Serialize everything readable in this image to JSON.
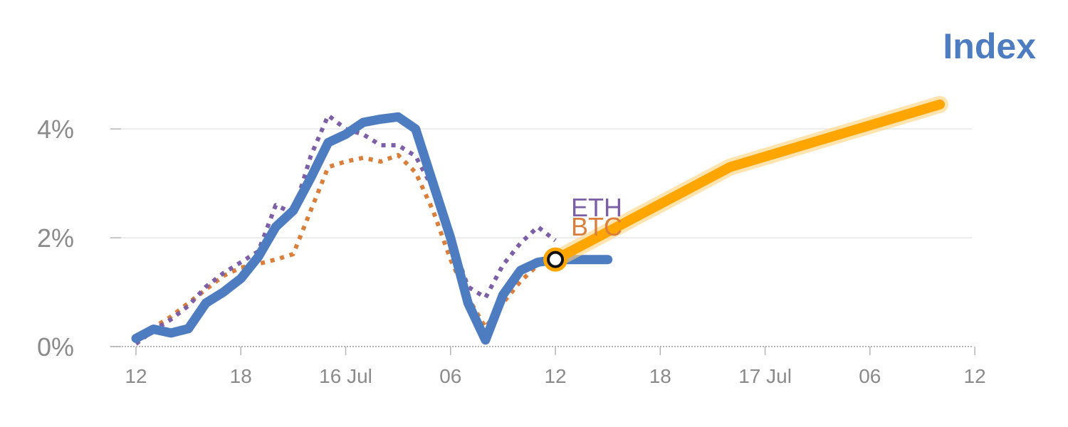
{
  "chart_data": {
    "type": "line",
    "title": "Index",
    "xlabel": "",
    "ylabel": "",
    "x_tick_labels": [
      "12",
      "18",
      "16 Jul",
      "06",
      "12",
      "18",
      "17 Jul",
      "06",
      "12"
    ],
    "y_tick_labels": [
      "0%",
      "2%",
      "4%"
    ],
    "y_ticks": [
      0,
      2,
      4
    ],
    "ylim": [
      0,
      4.8
    ],
    "xlim": [
      0,
      46
    ],
    "grid": true,
    "legend": "none",
    "series": [
      {
        "name": "",
        "style": "solid",
        "x": [
          0,
          1,
          2,
          3,
          4,
          5,
          6,
          7,
          8,
          9,
          10,
          11,
          12,
          13,
          14,
          15,
          16,
          17,
          18,
          19,
          20,
          21,
          22,
          23,
          24,
          25,
          26,
          27
        ],
        "values": [
          0.15,
          0.32,
          0.25,
          0.33,
          0.8,
          1.0,
          1.25,
          1.65,
          2.2,
          2.5,
          3.1,
          3.75,
          3.9,
          4.12,
          4.18,
          4.22,
          4.0,
          3.0,
          2.0,
          0.8,
          0.12,
          0.95,
          1.4,
          1.55,
          1.6,
          1.6,
          1.6,
          1.6
        ],
        "color": "#4e7cc0"
      },
      {
        "name": "BTC",
        "style": "dotted",
        "x": [
          0,
          1,
          2,
          3,
          4,
          5,
          6,
          7,
          8,
          9,
          10,
          11,
          12,
          13,
          14,
          15,
          16,
          17,
          18,
          19,
          20,
          21,
          22,
          23,
          24
        ],
        "values": [
          0.08,
          0.35,
          0.55,
          0.8,
          1.05,
          1.3,
          1.45,
          1.52,
          1.6,
          1.7,
          2.5,
          3.3,
          3.4,
          3.47,
          3.4,
          3.52,
          3.2,
          2.5,
          1.6,
          0.9,
          0.35,
          0.8,
          1.2,
          1.5,
          1.78
        ],
        "color": "#d97f3b"
      },
      {
        "name": "ETH",
        "style": "dotted",
        "x": [
          0,
          1,
          2,
          3,
          4,
          5,
          6,
          7,
          8,
          9,
          10,
          11,
          12,
          13,
          14,
          15,
          16,
          17,
          18,
          19,
          20,
          21,
          22,
          23,
          24
        ],
        "values": [
          0.05,
          0.3,
          0.5,
          0.75,
          1.1,
          1.35,
          1.55,
          1.75,
          2.6,
          2.45,
          3.5,
          4.25,
          4.0,
          3.9,
          3.7,
          3.7,
          3.5,
          2.9,
          2.0,
          1.1,
          0.9,
          1.5,
          1.9,
          2.2,
          1.95
        ],
        "color": "#7c5fa6"
      },
      {
        "name": "",
        "style": "projection",
        "x": [
          24,
          34,
          46
        ],
        "values": [
          1.6,
          3.3,
          4.45
        ],
        "color": "#ffa500"
      }
    ],
    "marker": {
      "x": 24,
      "y": 1.6
    },
    "colors": {
      "grid": "#e6e6e6",
      "axis": "#b5b5b5",
      "tick_text": "#8a8a8a",
      "projection_glow": "#ffd27a"
    }
  }
}
